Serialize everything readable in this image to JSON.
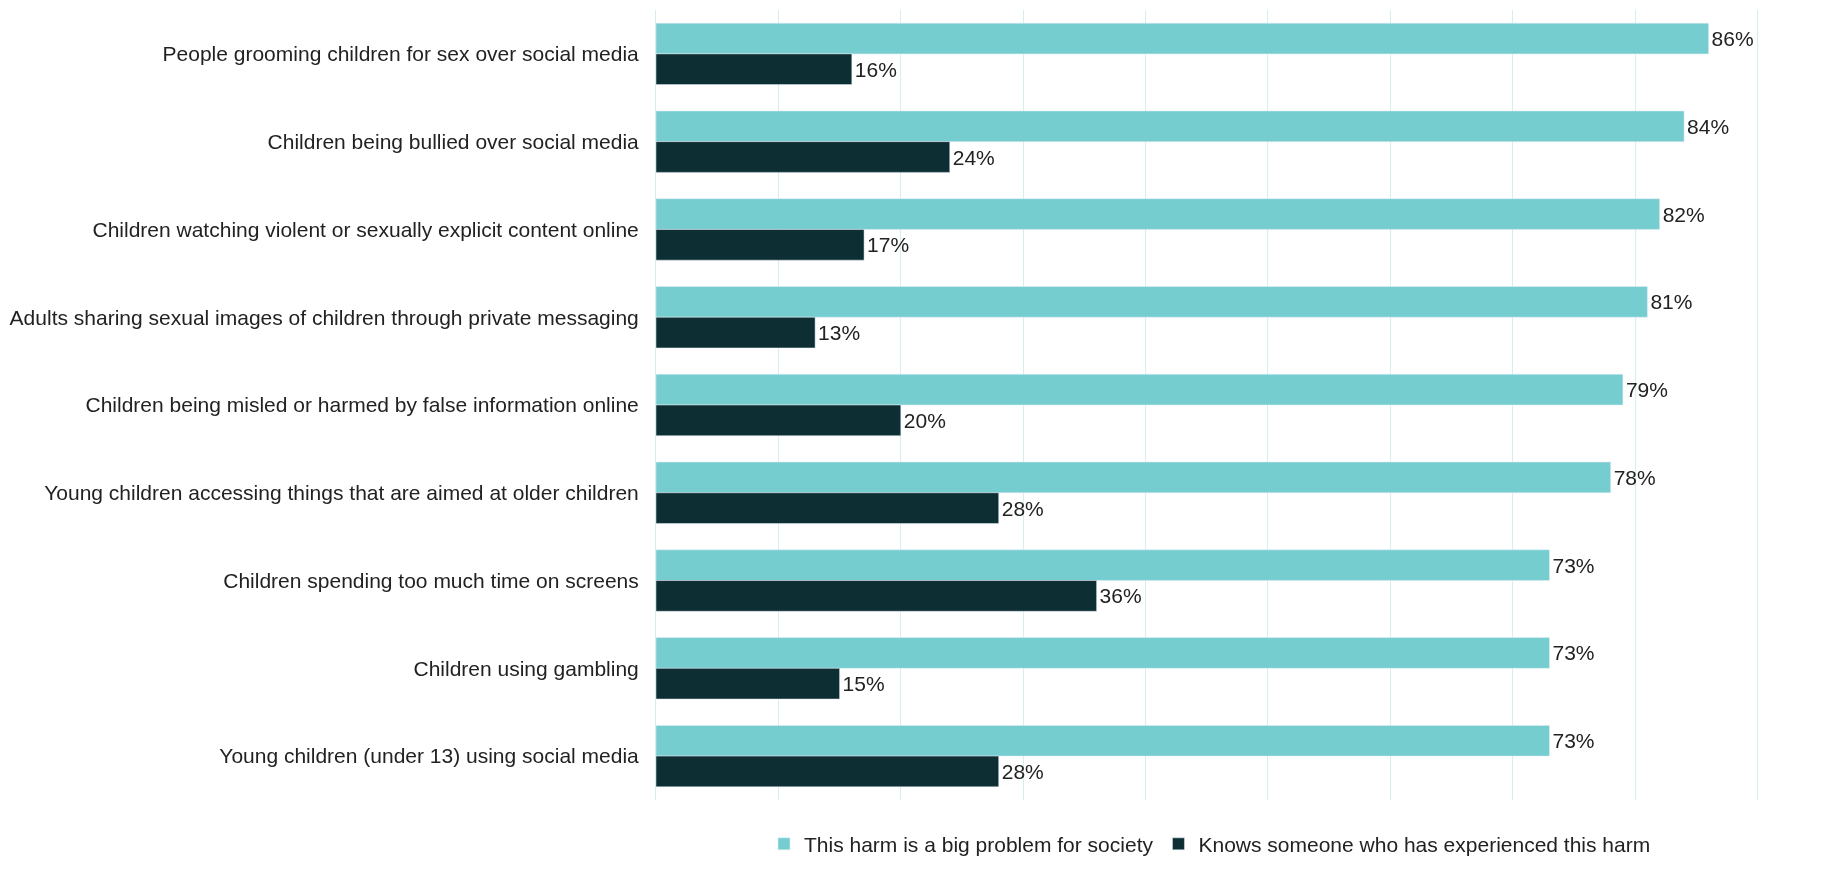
{
  "chart_data": {
    "type": "bar",
    "orientation": "horizontal",
    "categories": [
      "People grooming children for sex over social media",
      "Children being bullied over social media",
      "Children watching violent or sexually explicit content online",
      "Adults sharing sexual images of children through private messaging",
      "Children being misled or harmed by false information online",
      "Young children accessing things that are aimed at older children",
      "Children spending too much time on screens",
      "Children using gambling",
      "Young children (under 13) using social media"
    ],
    "series": [
      {
        "name": "This harm is a big problem for society",
        "color": "#76cdd0",
        "values": [
          86,
          84,
          82,
          81,
          79,
          78,
          73,
          73,
          73
        ],
        "value_labels": [
          "86%",
          "84%",
          "82%",
          "81%",
          "79%",
          "78%",
          "73%",
          "73%",
          "73%"
        ]
      },
      {
        "name": "Knows someone who has experienced this harm",
        "color": "#0d2e33",
        "values": [
          16,
          24,
          17,
          13,
          20,
          28,
          36,
          15,
          28
        ],
        "value_labels": [
          "16%",
          "24%",
          "17%",
          "13%",
          "20%",
          "28%",
          "36%",
          "15%",
          "28%"
        ]
      }
    ],
    "tick_labels": "y",
    "grid": "x",
    "legend": "bottom"
  }
}
